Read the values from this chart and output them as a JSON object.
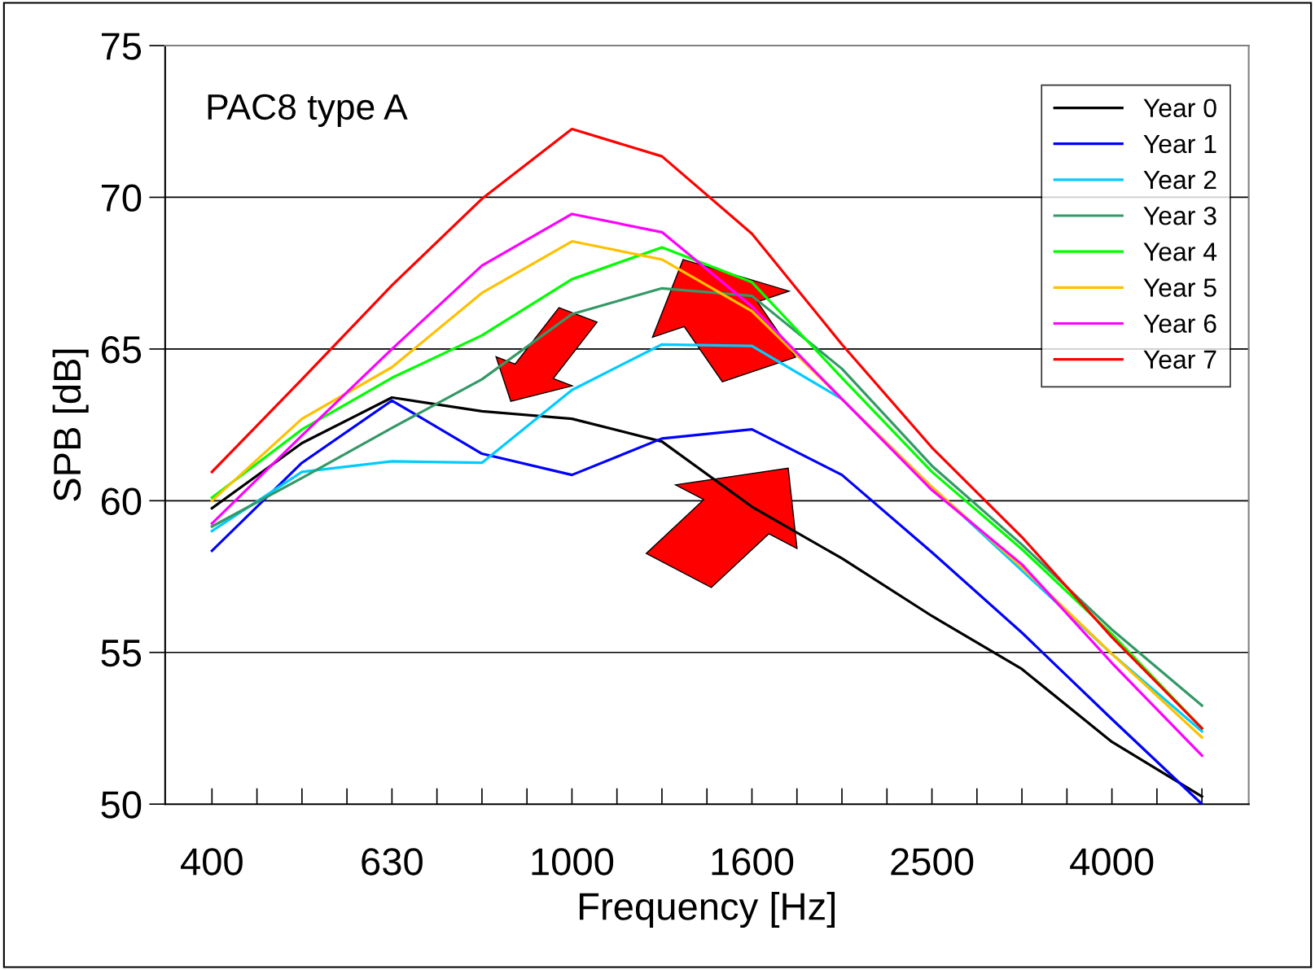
{
  "chart_data": {
    "type": "line",
    "xlabel": "Frequency [Hz]",
    "ylabel": "SPB [dB]",
    "annotations": [
      "PAC8 type A"
    ],
    "categories": [
      "400",
      null,
      "630",
      null,
      "1000",
      null,
      "1600",
      null,
      "2500",
      null,
      "4000",
      null
    ],
    "series": [
      {
        "name": "Year 0",
        "color": "#000000",
        "values": [
          59.75,
          61.9,
          63.4,
          62.95,
          62.7,
          61.95,
          59.8,
          58.1,
          56.2,
          54.45,
          52.05,
          50.25
        ]
      },
      {
        "name": "Year 1",
        "color": "#0000ff",
        "values": [
          58.35,
          61.25,
          63.3,
          61.55,
          60.85,
          62.05,
          62.35,
          60.85,
          58.3,
          55.65,
          52.8,
          50.0
        ]
      },
      {
        "name": "Year 2",
        "color": "#00ccff",
        "values": [
          59.0,
          60.95,
          61.3,
          61.25,
          63.65,
          65.15,
          65.1,
          63.35,
          60.45,
          57.7,
          54.95,
          52.4
        ]
      },
      {
        "name": "Year 3",
        "color": "#339966",
        "values": [
          59.15,
          60.75,
          62.4,
          64.0,
          66.15,
          67.0,
          66.75,
          64.35,
          61.15,
          58.55,
          55.75,
          53.25
        ]
      },
      {
        "name": "Year 4",
        "color": "#00ff00",
        "values": [
          60.1,
          62.35,
          64.05,
          65.45,
          67.3,
          68.35,
          67.2,
          64.05,
          60.95,
          58.4,
          55.6,
          52.5
        ]
      },
      {
        "name": "Year 5",
        "color": "#ffc000",
        "values": [
          60.0,
          62.7,
          64.4,
          66.85,
          68.55,
          67.95,
          66.25,
          63.35,
          60.45,
          57.8,
          54.95,
          52.2
        ]
      },
      {
        "name": "Year 6",
        "color": "#ff00ff",
        "values": [
          59.25,
          62.15,
          65.0,
          67.75,
          69.45,
          68.85,
          66.4,
          63.35,
          60.35,
          57.9,
          54.65,
          51.6
        ]
      },
      {
        "name": "Year 7",
        "color": "#ff0000",
        "values": [
          60.95,
          64.0,
          67.1,
          69.95,
          72.25,
          71.35,
          68.8,
          65.15,
          61.75,
          58.8,
          55.5,
          52.5
        ]
      }
    ],
    "ylim": [
      50,
      75
    ],
    "yticks": [
      50,
      55,
      60,
      65,
      70,
      75
    ],
    "grid": "y",
    "legend": "top right",
    "marker": "none",
    "line_style": "solid"
  }
}
